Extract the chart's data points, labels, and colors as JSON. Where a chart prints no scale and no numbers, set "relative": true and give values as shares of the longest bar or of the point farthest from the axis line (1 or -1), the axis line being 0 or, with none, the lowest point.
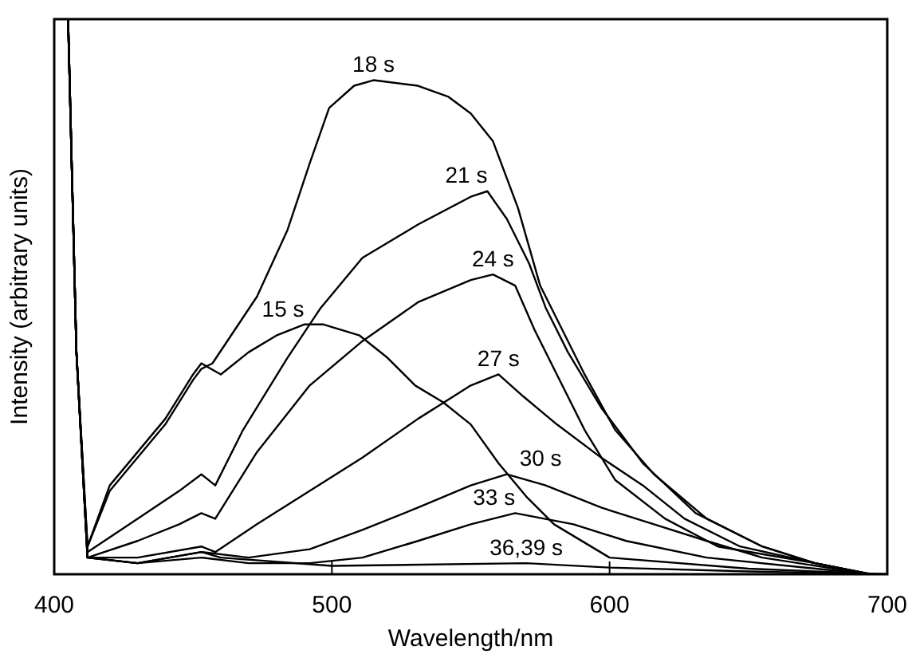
{
  "chart_data": {
    "type": "line",
    "xlabel": "Wavelength/nm",
    "ylabel": "Intensity (arbitrary units)",
    "relative": true,
    "xlim": [
      400,
      700
    ],
    "xticks": [
      400,
      500,
      600,
      700
    ],
    "legend": false,
    "marker": "none",
    "line_style": "solid",
    "series": [
      {
        "name": "15 s",
        "color": "#000000",
        "x": [
          405,
          408,
          412,
          420,
          430,
          440,
          450,
          453,
          460,
          470,
          480,
          490,
          497,
          510,
          520,
          530,
          540,
          550,
          560,
          570,
          580,
          600,
          650,
          700
        ],
        "values": [
          1,
          0.4,
          0.05,
          0.16,
          0.22,
          0.28,
          0.36,
          0.38,
          0.36,
          0.4,
          0.43,
          0.45,
          0.45,
          0.43,
          0.39,
          0.34,
          0.31,
          0.27,
          0.2,
          0.14,
          0.09,
          0.03,
          0.01,
          0
        ]
      },
      {
        "name": "18 s",
        "color": "#000000",
        "x": [
          405,
          408,
          412,
          420,
          430,
          440,
          450,
          453,
          457,
          473,
          484,
          492,
          499,
          508,
          515,
          531,
          542,
          550,
          558,
          567,
          575,
          583,
          591,
          602,
          616,
          635,
          655,
          674,
          694
        ],
        "values": [
          1,
          0.4,
          0.05,
          0.15,
          0.21,
          0.27,
          0.35,
          0.37,
          0.38,
          0.5,
          0.62,
          0.74,
          0.84,
          0.88,
          0.89,
          0.88,
          0.86,
          0.83,
          0.78,
          0.66,
          0.52,
          0.44,
          0.36,
          0.26,
          0.18,
          0.1,
          0.05,
          0.02,
          0
        ]
      },
      {
        "name": "21 s",
        "color": "#000000",
        "x": [
          405,
          408,
          412,
          430,
          445,
          453,
          458,
          468,
          484,
          496,
          511,
          531,
          550,
          556,
          563,
          571,
          577,
          585,
          597,
          612,
          631,
          655,
          674,
          694
        ],
        "values": [
          1,
          0.4,
          0.04,
          0.1,
          0.15,
          0.18,
          0.16,
          0.26,
          0.39,
          0.48,
          0.57,
          0.63,
          0.68,
          0.69,
          0.64,
          0.56,
          0.48,
          0.4,
          0.3,
          0.2,
          0.11,
          0.05,
          0.02,
          0
        ]
      },
      {
        "name": "24 s",
        "color": "#000000",
        "x": [
          405,
          408,
          412,
          430,
          445,
          453,
          458,
          473,
          492,
          511,
          531,
          550,
          558,
          566,
          573,
          581,
          591,
          602,
          620,
          639,
          674,
          694
        ],
        "values": [
          1,
          0.4,
          0.03,
          0.06,
          0.09,
          0.11,
          0.1,
          0.22,
          0.34,
          0.42,
          0.49,
          0.53,
          0.54,
          0.52,
          0.44,
          0.36,
          0.26,
          0.17,
          0.1,
          0.05,
          0.02,
          0
        ]
      },
      {
        "name": "27 s",
        "color": "#000000",
        "x": [
          405,
          408,
          412,
          430,
          453,
          458,
          473,
          492,
          511,
          531,
          550,
          560,
          569,
          581,
          597,
          612,
          627,
          647,
          674,
          694
        ],
        "values": [
          1,
          0.4,
          0.03,
          0.03,
          0.05,
          0.04,
          0.09,
          0.15,
          0.21,
          0.28,
          0.34,
          0.36,
          0.32,
          0.27,
          0.21,
          0.16,
          0.1,
          0.05,
          0.02,
          0
        ]
      },
      {
        "name": "30 s",
        "color": "#000000",
        "x": [
          405,
          408,
          412,
          430,
          453,
          470,
          492,
          511,
          531,
          550,
          563,
          577,
          597,
          616,
          635,
          655,
          694
        ],
        "values": [
          1,
          0.4,
          0.03,
          0.02,
          0.04,
          0.03,
          0.045,
          0.08,
          0.12,
          0.16,
          0.18,
          0.16,
          0.12,
          0.09,
          0.06,
          0.03,
          0
        ]
      },
      {
        "name": "33 s",
        "color": "#000000",
        "x": [
          405,
          408,
          412,
          430,
          453,
          470,
          492,
          511,
          531,
          550,
          566,
          587,
          606,
          635,
          694
        ],
        "values": [
          1,
          0.4,
          0.03,
          0.02,
          0.03,
          0.02,
          0.02,
          0.03,
          0.06,
          0.09,
          0.11,
          0.09,
          0.06,
          0.03,
          0
        ]
      },
      {
        "name": "36,39 s",
        "color": "#000000",
        "x": [
          405,
          408,
          412,
          430,
          453,
          460,
          500,
          570,
          600,
          650,
          700
        ],
        "values": [
          1,
          0.4,
          0.03,
          0.02,
          0.04,
          0.03,
          0.015,
          0.02,
          0.012,
          0.005,
          0
        ]
      }
    ]
  }
}
